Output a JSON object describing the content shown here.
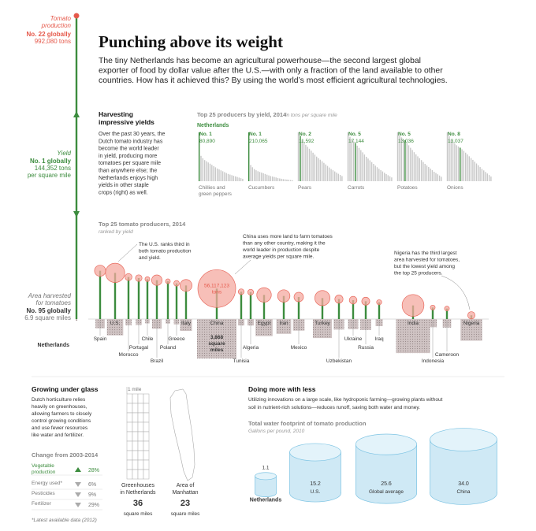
{
  "header": {
    "title": "Punching above its weight",
    "dek": [
      "The tiny Netherlands has become an agricultural powerhouse—the second largest global",
      "exporter of food by dollar value after the U.S.—with only a fraction of the land available to other",
      "countries. How has it achieved this? By using the world’s most efficient agricultural technologies."
    ]
  },
  "netherlands": {
    "production": {
      "label": [
        "Tomato",
        "production"
      ],
      "rank": "No. 22 globally",
      "amount": "992,080 tons"
    },
    "yield": {
      "label": [
        "Yield"
      ],
      "rank": "No. 1 globally",
      "amount": [
        "144,352 tons",
        "per square mile"
      ]
    },
    "area": {
      "label": [
        "Area harvested",
        "for tomatoes"
      ],
      "rank": "No. 95 globally",
      "amount": "6.9 square miles"
    }
  },
  "harvesting": {
    "title": [
      "Harvesting",
      "impressive yields"
    ],
    "body": [
      "Over the past 30 years, the",
      "Dutch tomato industry has",
      "become the world leader",
      "in yield, producing more",
      "tomatoes per square mile",
      "than anywhere else; the",
      "Netherlands enjoys high",
      "yields in other staple",
      "crops (right) as well."
    ]
  },
  "yield_charts": {
    "title": "Top 25 producers by yield, 2014",
    "units": "in tons per square mile",
    "highlight": "Netherlands",
    "crops": [
      {
        "rank": {
          "value": 1,
          "label": "No. 1"
        },
        "value_label": "80,890",
        "name": [
          "Chillies and",
          "green peppers"
        ],
        "values": [
          80890,
          42000,
          38000,
          35000,
          33000,
          31000,
          29000,
          27000,
          25000,
          23000,
          21000,
          19500,
          18000,
          16500,
          15000,
          13500,
          12000,
          11000,
          10000,
          9000,
          8000,
          7000,
          6000,
          5000,
          4000
        ]
      },
      {
        "rank": {
          "value": 1,
          "label": "No. 1"
        },
        "value_label": "210,065",
        "name": [
          "Cucumbers"
        ],
        "values": [
          210065,
          70000,
          60000,
          52000,
          47000,
          43000,
          40000,
          37000,
          34000,
          31000,
          28000,
          25000,
          22000,
          20000,
          18000,
          16000,
          14000,
          12000,
          10500,
          9000,
          8000,
          7000,
          6000,
          5000,
          4000
        ]
      },
      {
        "rank": {
          "value": 2,
          "label": "No. 2"
        },
        "value_label": "11,592",
        "name": [
          "Pears"
        ],
        "values": [
          12500,
          11592,
          10500,
          9800,
          9300,
          8800,
          8300,
          7800,
          7300,
          6800,
          6300,
          5900,
          5500,
          5100,
          4700,
          4300,
          3900,
          3500,
          3100,
          2800,
          2500,
          2200,
          1900,
          1600,
          1300
        ]
      },
      {
        "rank": {
          "value": 5,
          "label": "No. 5"
        },
        "value_label": "17,144",
        "name": [
          "Carrots"
        ],
        "values": [
          22000,
          20000,
          18800,
          17900,
          17144,
          16000,
          15000,
          14000,
          13000,
          12000,
          11000,
          10200,
          9400,
          8600,
          7800,
          7000,
          6300,
          5600,
          5000,
          4400,
          3800,
          3200,
          2700,
          2200,
          1700
        ]
      },
      {
        "rank": {
          "value": 5,
          "label": "No. 5"
        },
        "value_label": "13,036",
        "name": [
          "Potatoes"
        ],
        "values": [
          15500,
          14500,
          13900,
          13400,
          13036,
          12200,
          11400,
          10600,
          9900,
          9200,
          8500,
          7900,
          7300,
          6700,
          6100,
          5500,
          5000,
          4500,
          4000,
          3500,
          3000,
          2600,
          2200,
          1800,
          1400
        ]
      },
      {
        "rank": {
          "value": 8,
          "label": "No. 8"
        },
        "value_label": "13,037",
        "name": [
          "Onions"
        ],
        "values": [
          19000,
          17500,
          16200,
          15300,
          14600,
          14000,
          13500,
          13037,
          12400,
          11800,
          11100,
          10400,
          9700,
          9000,
          8300,
          7600,
          6900,
          6200,
          5500,
          4800,
          4200,
          3600,
          3000,
          2400,
          1800
        ]
      }
    ]
  },
  "producers": {
    "title": "Top 25 tomato producers, 2014",
    "subtitle": "ranked by yield",
    "countries": [
      {
        "name": "Netherlands",
        "production": 992080,
        "yield": 144352,
        "area": 6.9
      },
      {
        "name": "Spain",
        "production": 4900000,
        "yield": 23000,
        "area": 213
      },
      {
        "name": "U.S.",
        "production": 14500000,
        "yield": 22000,
        "area": 659
      },
      {
        "name": "Morocco",
        "production": 1900000,
        "yield": 20000,
        "area": 95
      },
      {
        "name": "Portugal",
        "production": 1700000,
        "yield": 19500,
        "area": 87
      },
      {
        "name": "Chile",
        "production": 900000,
        "yield": 19000,
        "area": 47
      },
      {
        "name": "Brazil",
        "production": 4300000,
        "yield": 18500,
        "area": 232
      },
      {
        "name": "Poland",
        "production": 900000,
        "yield": 18000,
        "area": 50
      },
      {
        "name": "Greece",
        "production": 1200000,
        "yield": 17000,
        "area": 71
      },
      {
        "name": "Italy",
        "production": 5600000,
        "yield": 16000,
        "area": 350
      },
      {
        "name": "China",
        "production": 56117123,
        "yield": 14500,
        "area": 3868
      },
      {
        "name": "Tunisia",
        "production": 1300000,
        "yield": 13000,
        "area": 100
      },
      {
        "name": "Algeria",
        "production": 1300000,
        "yield": 12800,
        "area": 102
      },
      {
        "name": "Egypt",
        "production": 8300000,
        "yield": 11500,
        "area": 722
      },
      {
        "name": "Iran",
        "production": 6000000,
        "yield": 11000,
        "area": 545
      },
      {
        "name": "Mexico",
        "production": 3500000,
        "yield": 10500,
        "area": 333
      },
      {
        "name": "Turkey",
        "production": 9000000,
        "yield": 10000,
        "area": 900
      },
      {
        "name": "Uzbekistan",
        "production": 2600000,
        "yield": 9500,
        "area": 274
      },
      {
        "name": "Ukraine",
        "production": 2300000,
        "yield": 9000,
        "area": 256
      },
      {
        "name": "Russia",
        "production": 2500000,
        "yield": 8500,
        "area": 294
      },
      {
        "name": "Iraq",
        "production": 1000000,
        "yield": 8000,
        "area": 125
      },
      {
        "name": "India",
        "production": 18700000,
        "yield": 6500,
        "area": 2877
      },
      {
        "name": "Indonesia",
        "production": 900000,
        "yield": 5500,
        "area": 164
      },
      {
        "name": "Cameroon",
        "production": 900000,
        "yield": 5000,
        "area": 180
      },
      {
        "name": "Nigeria",
        "production": 2100000,
        "yield": 1800,
        "area": 1167
      }
    ],
    "china_production": [
      "56,117,123",
      "tons"
    ],
    "china_area": [
      "3,868",
      "square",
      "miles"
    ],
    "notes": {
      "us": [
        "The U.S. ranks third in",
        "both tomato production",
        "and yield."
      ],
      "china": [
        "China uses more land to farm tomatoes",
        "than any other country, making it the",
        "world leader in production despite",
        "average yields per square mile."
      ],
      "nigeria": [
        "Nigeria has the third largest",
        "area harvested for tomatoes,",
        "but the lowest yield among",
        "the top 25 producers."
      ]
    }
  },
  "glass": {
    "title": "Growing under glass",
    "body": [
      "Dutch horticulture relies",
      "heavily on greenhouses,",
      "allowing farmers to closely",
      "control growing conditions",
      "and use fewer resources",
      "like water and fertilizer."
    ],
    "change_title": "Change from 2003-2014",
    "changes": [
      {
        "label": [
          "Vegetable",
          "production"
        ],
        "direction": "up",
        "value": "28%"
      },
      {
        "label": [
          "Energy used*"
        ],
        "direction": "down",
        "value": "6%"
      },
      {
        "label": [
          "Pesticides"
        ],
        "direction": "down",
        "value": "9%"
      },
      {
        "label": [
          "Fertilizer"
        ],
        "direction": "down",
        "value": "29%"
      }
    ],
    "footnote": "*Latest available data (2012)"
  },
  "area_compare": {
    "scale": "1 mile",
    "greenhouses": {
      "label": [
        "Greenhouses",
        "in Netherlands"
      ],
      "value": 36,
      "unit": "square miles"
    },
    "manhattan": {
      "label": [
        "Area of",
        "Manhattan"
      ],
      "value": 23,
      "unit": "square miles"
    }
  },
  "water": {
    "title": "Doing more with less",
    "body": [
      "Utilizing innovations on a large scale, like hydroponic farming—growing plants without",
      "soil in nutrient-rich solutions—reduces runoff, saving both water and money."
    ],
    "chart_title": "Total water footprint of tomato production",
    "chart_subtitle": "Gallons per pound, 2010",
    "categories": [
      "Netherlands",
      "U.S.",
      "Global average",
      "China"
    ],
    "values": [
      1.1,
      15.2,
      25.6,
      34
    ],
    "value_labels": [
      "1.1",
      "15.2",
      "25.6",
      "34.0"
    ]
  }
}
